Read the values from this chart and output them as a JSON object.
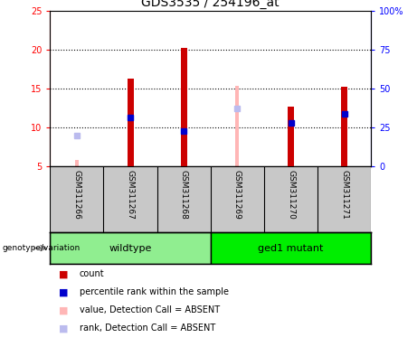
{
  "title": "GDS3535 / 254196_at",
  "samples": [
    "GSM311266",
    "GSM311267",
    "GSM311268",
    "GSM311269",
    "GSM311270",
    "GSM311271"
  ],
  "ylim_left": [
    5,
    25
  ],
  "ylim_right": [
    0,
    100
  ],
  "yticks_left": [
    5,
    10,
    15,
    20,
    25
  ],
  "yticks_right": [
    0,
    25,
    50,
    75,
    100
  ],
  "ytick_right_labels": [
    "0",
    "25",
    "50",
    "75",
    "100%"
  ],
  "red_bar_bottom": 5,
  "red_values": [
    null,
    16.3,
    20.2,
    null,
    12.7,
    15.2
  ],
  "blue_values": [
    null,
    11.3,
    9.5,
    null,
    10.6,
    11.7
  ],
  "pink_bar_values": [
    5.8,
    null,
    null,
    15.3,
    null,
    null
  ],
  "light_blue_values": [
    9.0,
    null,
    null,
    12.4,
    null,
    null
  ],
  "red_color": "#CC0000",
  "blue_color": "#0000CC",
  "absent_pink_color": "#FFB6B6",
  "absent_blue_color": "#BBBBEE",
  "bg_label": "#C8C8C8",
  "bg_group_wt": "#90EE90",
  "bg_group_mut": "#00DD00",
  "wildtype_label": "wildtype",
  "mutant_label": "ged1 mutant",
  "genotype_label": "genotype/variation",
  "legend_items": [
    {
      "color": "#CC0000",
      "label": "count"
    },
    {
      "color": "#0000CC",
      "label": "percentile rank within the sample"
    },
    {
      "color": "#FFB6B6",
      "label": "value, Detection Call = ABSENT"
    },
    {
      "color": "#BBBBEE",
      "label": "rank, Detection Call = ABSENT"
    }
  ]
}
